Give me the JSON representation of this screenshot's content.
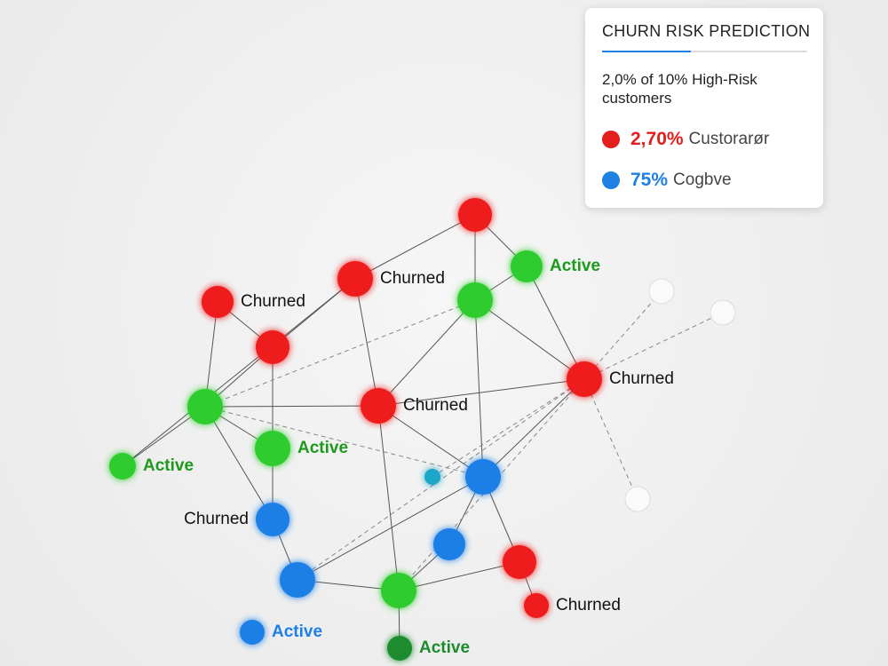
{
  "panel": {
    "title": "CHURN RISK PREDICTION",
    "summary": "2,0% of 10% High-Risk customers",
    "items": [
      {
        "value": "2,70%",
        "label": "Custorarør",
        "color": "#e41d1d"
      },
      {
        "value": "75%",
        "label": "Cogbve",
        "color": "#1e80e0"
      }
    ]
  },
  "nodes": [
    {
      "color": "#ee1c1c"
    },
    {
      "color": "#2ecc2e",
      "label": "Active"
    },
    {
      "color": "#ee1c1c",
      "label": "Churned"
    },
    {
      "color": "#2ecc2e"
    },
    {
      "color": "#ee1c1c",
      "label": "Churned"
    },
    {
      "color": "#ee1c1c"
    },
    {
      "color": "#ee1c1c",
      "label": "Churned"
    },
    {
      "color": "#2ecc2e"
    },
    {
      "color": "#ee1c1c",
      "label": "Churned"
    },
    {
      "color": "#2ecc2e",
      "label": "Active"
    },
    {
      "color": "#2ecc2e",
      "label": "Active"
    },
    {
      "color": "#1e7fe6"
    },
    {
      "color": "#1fa6c8"
    },
    {
      "color": "#1e7fe6",
      "label": "Churned"
    },
    {
      "color": "#1e7fe6"
    },
    {
      "color": "#ee1c1c"
    },
    {
      "color": "#1e7fe6"
    },
    {
      "color": "#2ecc2e"
    },
    {
      "color": "#ee1c1c",
      "label": "Churned"
    },
    {
      "color": "#1e7fe6",
      "label": "Active"
    },
    {
      "color": "#1b8c2e",
      "label": "Active"
    }
  ]
}
